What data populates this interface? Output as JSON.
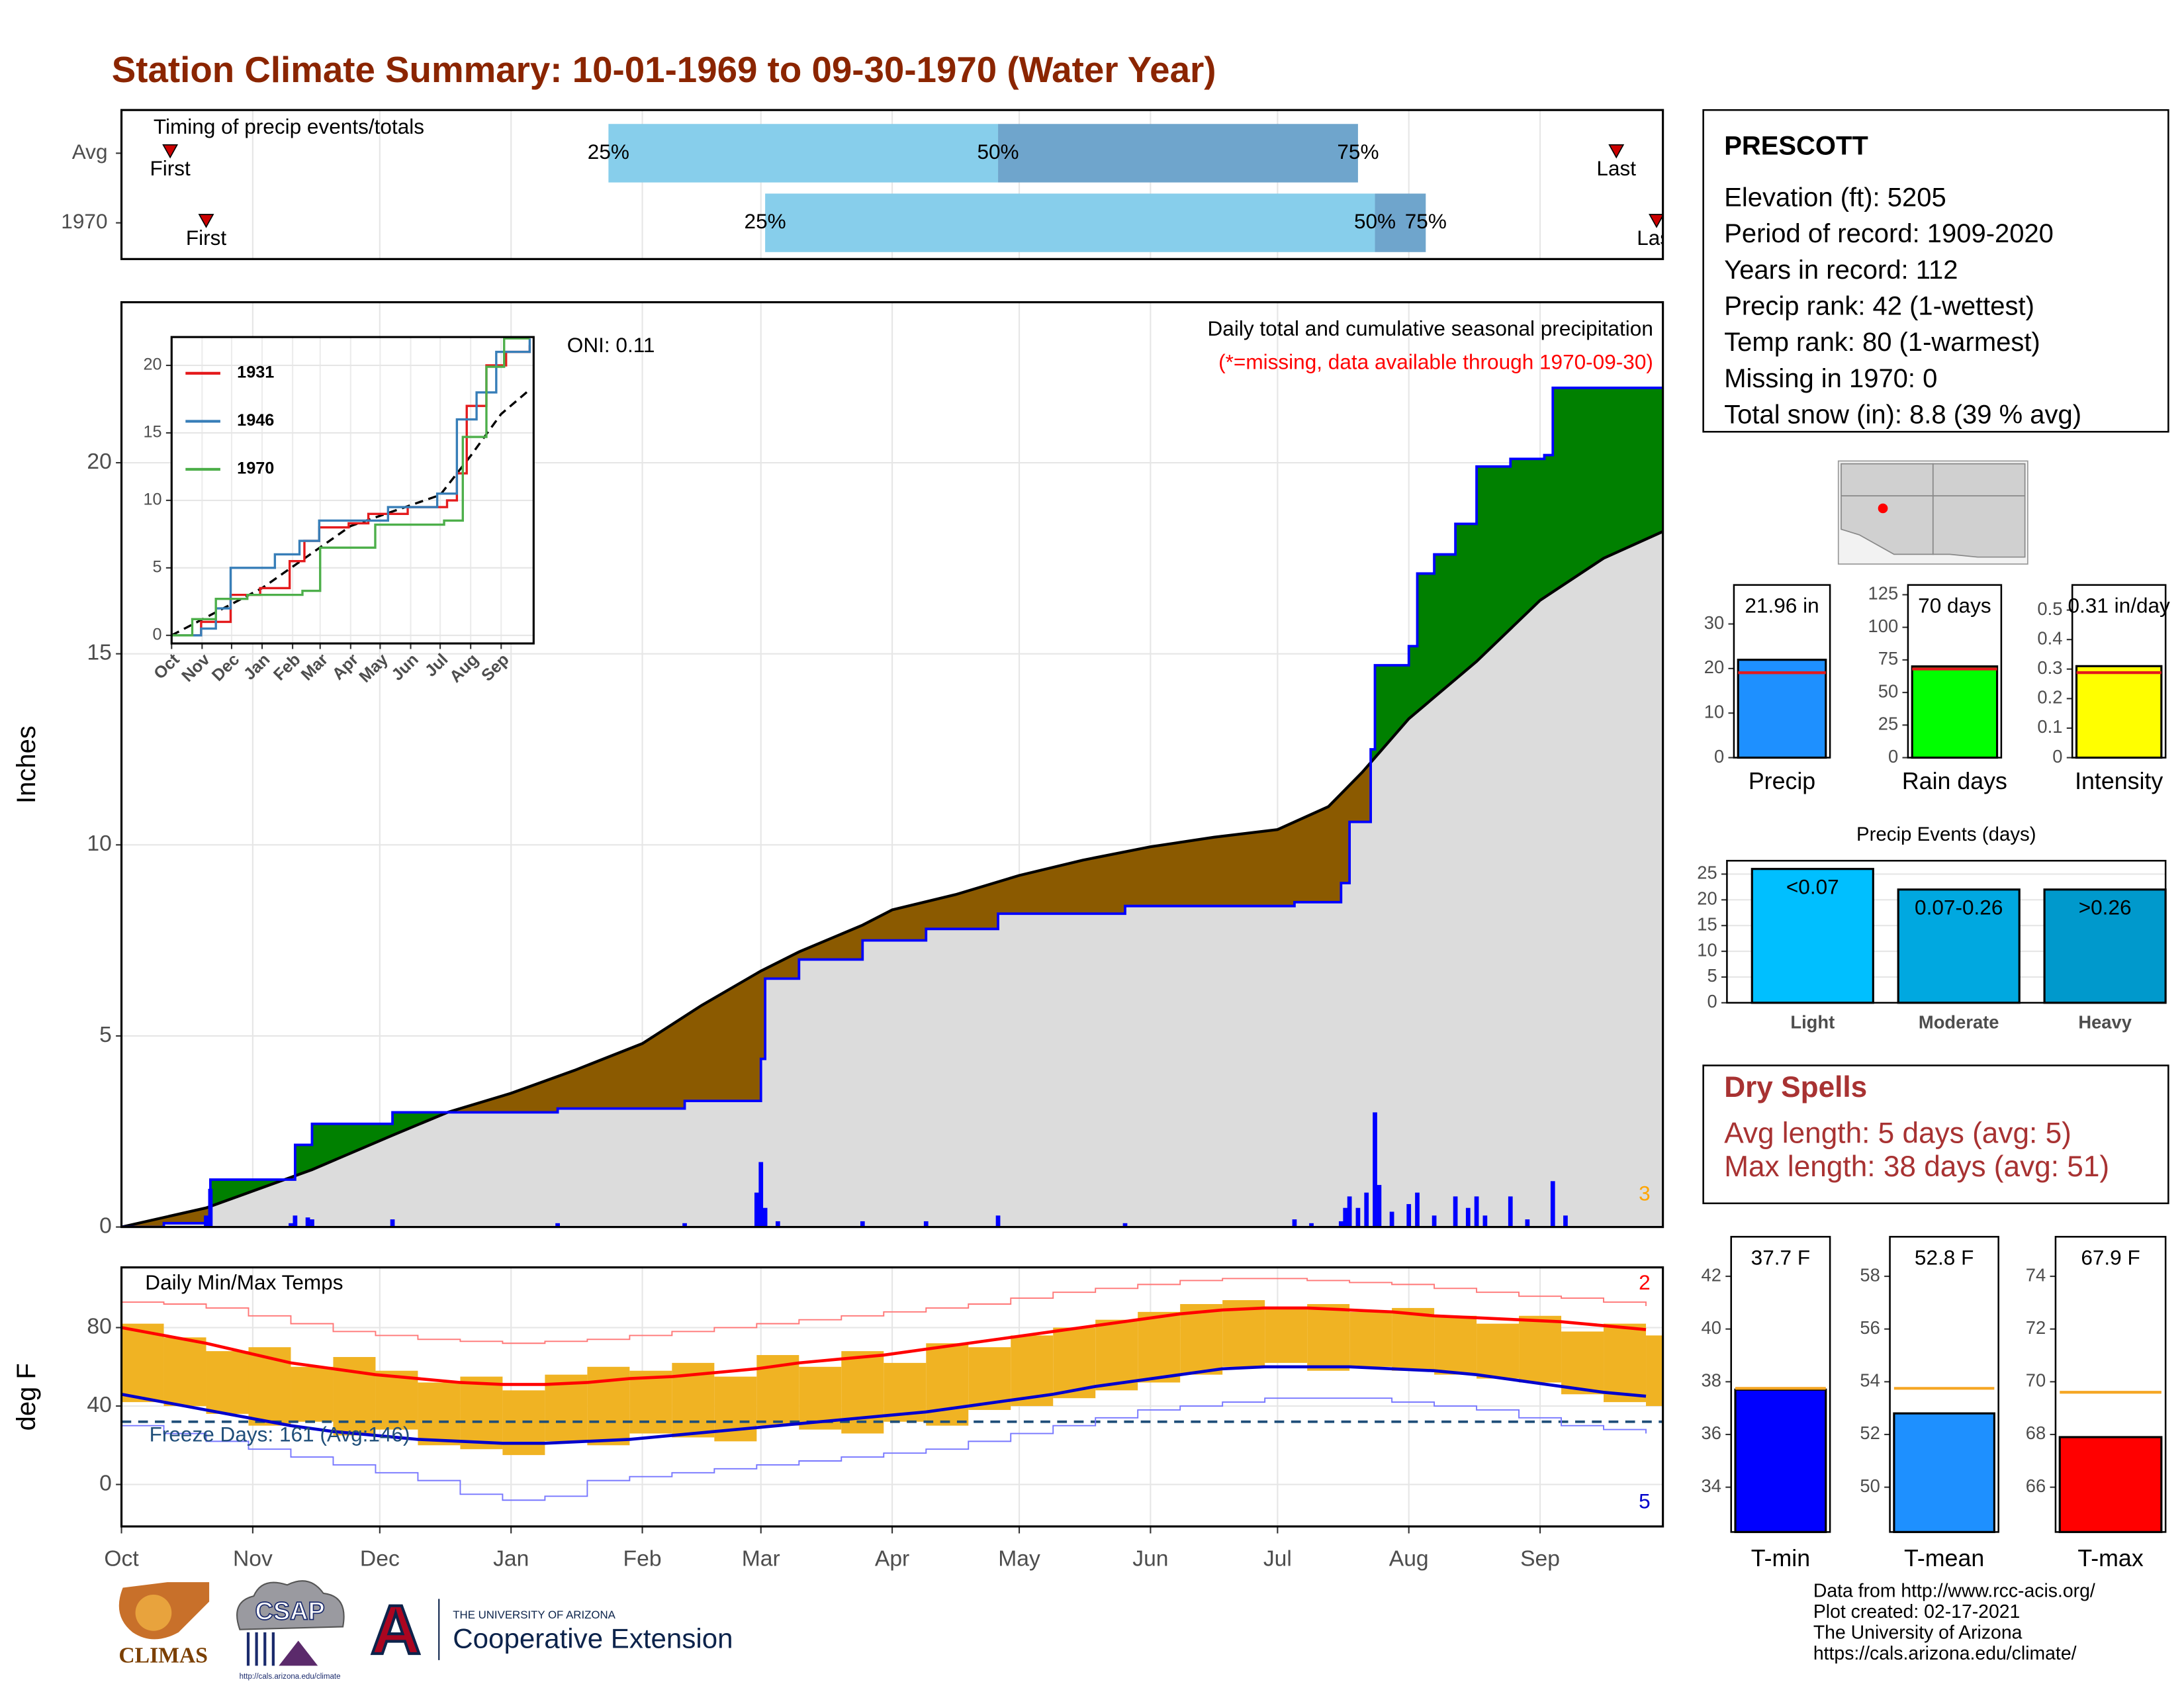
{
  "title": "Station Climate Summary: 10-01-1969 to 09-30-1970 (Water Year)",
  "station": {
    "name": "PRESCOTT",
    "lines": [
      "Elevation (ft): 5205",
      "Period of record: 1909-2020",
      "Years in record: 112",
      "Precip rank: 42 (1-wettest)",
      "Temp rank: 80 (1-warmest)",
      "Missing in 1970: 0",
      "Total snow (in): 8.8 (39 % avg)"
    ]
  },
  "dry_spells": {
    "title": "Dry Spells",
    "lines": [
      "Avg length: 5 days (avg: 5)",
      "Max length: 38 days (avg: 51)"
    ]
  },
  "footer": {
    "logos": [
      "CLIMAS",
      "CSAP",
      "http://cals.arizona.edu/climate",
      "THE UNIVERSITY OF ARIZONA",
      "Cooperative Extension"
    ],
    "credits": [
      "Data from http://www.rcc-acis.org/",
      "Plot created: 02-17-2021",
      "The University of Arizona",
      "https://cals.arizona.edu/climate/"
    ]
  },
  "chart_data": [
    {
      "type": "timing",
      "title": "Timing of precip events/totals",
      "categories": [
        "Avg",
        "1970"
      ],
      "quartiles": [
        [
          115,
          207,
          292
        ],
        [
          152,
          296,
          308
        ]
      ],
      "quartile_labels": [
        "25%",
        "50%",
        "75%"
      ],
      "first": [
        11.5,
        20
      ],
      "last": [
        353,
        362.5
      ],
      "first_label": "First",
      "last_label": "Last",
      "colors": [
        "#87ceeb",
        "#6fa5cc"
      ],
      "marker_color": "#cc0000",
      "xlim": [
        0,
        364
      ]
    },
    {
      "type": "cumulative",
      "title": "Daily total and cumulative seasonal precipitation",
      "subtitle": "(*=missing, data available through 1970-09-30)",
      "annotation": "ONI: 0.11",
      "corner_note": "3",
      "ylabel": "Inches",
      "xlim": [
        0,
        364
      ],
      "ylim": [
        0,
        24.2
      ],
      "yticks": [
        0,
        5,
        10,
        15,
        20
      ],
      "fill_above": "#008000",
      "fill_below": "#8b5a00",
      "fill_base": "#dcdcdc",
      "series": [
        {
          "color": "#0000ff",
          "x": [
            0,
            10,
            20,
            21,
            41,
            45,
            64,
            77,
            103,
            133,
            151,
            152,
            160,
            175,
            190,
            207,
            237,
            277,
            288,
            290,
            295,
            296,
            304,
            306,
            310,
            315,
            320,
            328,
            336,
            338,
            364
          ],
          "values": [
            0,
            0.1,
            0.2,
            1.24,
            2.15,
            2.7,
            3.0,
            3.0,
            3.1,
            3.3,
            4.4,
            6.5,
            7.0,
            7.5,
            7.8,
            8.2,
            8.4,
            8.5,
            9.0,
            10.6,
            12.5,
            14.7,
            15.2,
            17.1,
            17.6,
            18.4,
            19.9,
            20.1,
            20.2,
            21.96,
            21.96
          ]
        },
        {
          "color": "#000000",
          "x": [
            0,
            20,
            30,
            45,
            64,
            77,
            92,
            107,
            123,
            137,
            151,
            160,
            175,
            182,
            197,
            212,
            227,
            243,
            258,
            273,
            285,
            293,
            304,
            320,
            335,
            350,
            364
          ],
          "values": [
            0,
            0.5,
            0.9,
            1.5,
            2.4,
            3.0,
            3.5,
            4.1,
            4.8,
            5.8,
            6.7,
            7.2,
            7.9,
            8.3,
            8.7,
            9.2,
            9.6,
            9.95,
            10.2,
            10.4,
            11.0,
            11.9,
            13.3,
            14.8,
            16.4,
            17.5,
            18.2
          ]
        }
      ],
      "bars": {
        "color": "#0000ff",
        "x": [
          20,
          21,
          40,
          41,
          44,
          45,
          64,
          103,
          133,
          150,
          151,
          152,
          155,
          175,
          190,
          207,
          237,
          277,
          281,
          288,
          289,
          290,
          292,
          294,
          296,
          297,
          300,
          304,
          306,
          310,
          315,
          318,
          320,
          322,
          328,
          332,
          338,
          341
        ],
        "values": [
          0.3,
          1.0,
          0.1,
          0.3,
          0.25,
          0.2,
          0.2,
          0.1,
          0.1,
          0.9,
          1.7,
          0.5,
          0.15,
          0.15,
          0.15,
          0.3,
          0.1,
          0.2,
          0.1,
          0.15,
          0.5,
          0.8,
          0.5,
          0.9,
          3.0,
          1.1,
          0.4,
          0.6,
          0.9,
          0.3,
          0.8,
          0.5,
          0.8,
          0.3,
          0.8,
          0.2,
          1.2,
          0.3
        ]
      }
    },
    {
      "type": "line",
      "xlim": [
        0,
        368
      ],
      "ylim": [
        -0.6,
        22.1
      ],
      "yticks": [
        0,
        5,
        10,
        15,
        20
      ],
      "xticks": [
        {
          "value": 0,
          "label": "Oct"
        },
        {
          "value": 31,
          "label": "Nov"
        },
        {
          "value": 61,
          "label": "Dec"
        },
        {
          "value": 92,
          "label": "Jan"
        },
        {
          "value": 123,
          "label": "Feb"
        },
        {
          "value": 151,
          "label": "Mar"
        },
        {
          "value": 182,
          "label": "Apr"
        },
        {
          "value": 212,
          "label": "May"
        },
        {
          "value": 243,
          "label": "Jun"
        },
        {
          "value": 273,
          "label": "Jul"
        },
        {
          "value": 304,
          "label": "Aug"
        },
        {
          "value": 335,
          "label": "Sep"
        }
      ],
      "series": [
        {
          "name": "1931",
          "color": "#e41a1c",
          "x": [
            0,
            30,
            60,
            90,
            120,
            135,
            150,
            180,
            200,
            240,
            280,
            290,
            300,
            320,
            340,
            364
          ],
          "values": [
            0,
            1,
            3,
            3.5,
            5.5,
            7,
            8,
            8.3,
            9,
            9.5,
            10,
            12,
            17,
            20,
            21,
            21.5
          ]
        },
        {
          "name": "1946",
          "color": "#377eb8",
          "x": [
            0,
            30,
            45,
            60,
            90,
            105,
            130,
            150,
            180,
            220,
            270,
            290,
            310,
            330,
            364
          ],
          "values": [
            0,
            0.5,
            2,
            5,
            5,
            6,
            7,
            8.5,
            8.5,
            9.5,
            10.5,
            16,
            18,
            21,
            22
          ]
        },
        {
          "name": "1970",
          "color": "#4daf4a",
          "x": [
            0,
            21,
            45,
            77,
            133,
            151,
            207,
            277,
            296,
            320,
            338,
            364
          ],
          "values": [
            0,
            1.2,
            2.7,
            3,
            3.3,
            6.5,
            8.2,
            8.5,
            14.7,
            19.9,
            22,
            22
          ]
        }
      ],
      "average": {
        "color": "#000000",
        "x": [
          0,
          92,
          182,
          273,
          304,
          335,
          364
        ],
        "values": [
          0,
          3.5,
          8.1,
          10.4,
          13.3,
          16.4,
          18.2
        ]
      }
    },
    {
      "type": "temperature",
      "title": "Daily Min/Max Temps",
      "ylabel": "deg F",
      "corner_high": "2",
      "corner_low": "5",
      "freeze_label": "Freeze Days: 161 (Avg:146)",
      "freeze_line": 32,
      "freeze_color": "#1f4e79",
      "xlim": [
        0,
        364
      ],
      "ylim": [
        -21.4,
        110.7
      ],
      "yticks": [
        0,
        40,
        80
      ],
      "xticks": [
        {
          "value": 0,
          "label": "Oct"
        },
        {
          "value": 31,
          "label": "Nov"
        },
        {
          "value": 61,
          "label": "Dec"
        },
        {
          "value": 92,
          "label": "Jan"
        },
        {
          "value": 123,
          "label": "Feb"
        },
        {
          "value": 151,
          "label": "Mar"
        },
        {
          "value": 182,
          "label": "Apr"
        },
        {
          "value": 212,
          "label": "May"
        },
        {
          "value": 243,
          "label": "Jun"
        },
        {
          "value": 273,
          "label": "Jul"
        },
        {
          "value": 304,
          "label": "Aug"
        },
        {
          "value": 335,
          "label": "Sep"
        }
      ],
      "x": [
        0,
        10,
        20,
        30,
        40,
        50,
        60,
        70,
        80,
        90,
        100,
        110,
        120,
        130,
        140,
        150,
        160,
        170,
        180,
        190,
        200,
        210,
        220,
        230,
        240,
        250,
        260,
        270,
        280,
        290,
        300,
        310,
        320,
        330,
        340,
        350,
        360
      ],
      "daily": {
        "color": "#f0b323",
        "tmax": [
          82,
          75,
          68,
          70,
          60,
          65,
          58,
          52,
          55,
          48,
          56,
          60,
          58,
          62,
          55,
          66,
          60,
          68,
          62,
          72,
          70,
          76,
          80,
          84,
          88,
          92,
          94,
          90,
          92,
          88,
          90,
          86,
          82,
          86,
          78,
          82,
          76
        ],
        "tmin": [
          42,
          40,
          36,
          30,
          32,
          25,
          28,
          20,
          18,
          15,
          22,
          20,
          26,
          24,
          22,
          30,
          28,
          26,
          32,
          30,
          38,
          40,
          44,
          48,
          52,
          56,
          60,
          62,
          58,
          60,
          58,
          56,
          54,
          52,
          46,
          42,
          40
        ]
      },
      "series": [
        {
          "color": "#ff0000",
          "values": [
            80,
            76,
            72,
            67,
            62,
            59,
            56,
            54,
            52,
            51,
            51,
            52,
            54,
            55,
            57,
            59,
            62,
            64,
            66,
            69,
            72,
            75,
            78,
            81,
            84,
            87,
            89,
            90,
            90,
            89,
            88,
            86,
            85,
            84,
            83,
            81,
            79
          ]
        },
        {
          "color": "#0000cc",
          "values": [
            46,
            42,
            38,
            34,
            30,
            27,
            25,
            23,
            22,
            21,
            21,
            22,
            23,
            25,
            27,
            29,
            31,
            33,
            35,
            37,
            40,
            43,
            46,
            50,
            53,
            56,
            59,
            60,
            60,
            60,
            59,
            58,
            56,
            53,
            50,
            47,
            45
          ]
        },
        {
          "color": "#ff7777",
          "values": [
            93,
            92,
            90,
            86,
            82,
            78,
            76,
            74,
            73,
            72,
            73,
            74,
            76,
            78,
            80,
            82,
            84,
            86,
            88,
            90,
            92,
            95,
            98,
            100,
            102,
            104,
            105,
            105,
            104,
            103,
            102,
            100,
            98,
            96,
            95,
            93,
            91
          ]
        },
        {
          "color": "#7777ff",
          "values": [
            30,
            26,
            22,
            18,
            14,
            10,
            6,
            2,
            -5,
            -8,
            -6,
            2,
            4,
            6,
            8,
            10,
            12,
            14,
            16,
            18,
            22,
            26,
            30,
            34,
            38,
            40,
            42,
            44,
            44,
            44,
            42,
            40,
            38,
            34,
            30,
            28,
            26
          ]
        }
      ]
    },
    {
      "type": "bar",
      "categories": [
        "Precip"
      ],
      "values": [
        21.96
      ],
      "value_labels": [
        "21.96 in"
      ],
      "color": "#1e90ff",
      "average": 19.06,
      "average_color": "#e31a1c",
      "ylim": [
        0,
        38.75
      ],
      "yticks": [
        0,
        10,
        20,
        30
      ]
    },
    {
      "type": "bar",
      "categories": [
        "Rain days"
      ],
      "values": [
        70
      ],
      "value_labels": [
        "70 days"
      ],
      "color": "#00ff00",
      "average": 68,
      "average_color": "#e31a1c",
      "ylim": [
        0,
        132.5
      ],
      "yticks": [
        0,
        25,
        50,
        75,
        100,
        125
      ]
    },
    {
      "type": "bar",
      "categories": [
        "Intensity"
      ],
      "values": [
        0.31
      ],
      "value_labels": [
        "0.31 in/day"
      ],
      "color": "#ffff00",
      "average": 0.288,
      "average_color": "#e31a1c",
      "ylim": [
        0,
        0.585
      ],
      "yticks": [
        0.0,
        0.1,
        0.2,
        0.3,
        0.4,
        0.5
      ]
    },
    {
      "type": "bar",
      "title": "Precip Events (days)",
      "categories": [
        "Light",
        "Moderate",
        "Heavy"
      ],
      "values": [
        26,
        22,
        22
      ],
      "bar_labels": [
        "<0.07",
        "0.07-0.26",
        ">0.26"
      ],
      "colors": [
        "#00bfff",
        "#00a8e0",
        "#0099cc"
      ],
      "ylim": [
        0,
        27.6
      ],
      "yticks": [
        0,
        5,
        10,
        15,
        20,
        25
      ],
      "grid": true
    },
    {
      "type": "bar",
      "categories": [
        "T-min"
      ],
      "values": [
        37.7
      ],
      "value_labels": [
        "37.7 F"
      ],
      "color": "#0000ff",
      "average": 37.75,
      "average_color": "#f5a623",
      "ylim": [
        32.3,
        43.5
      ],
      "yticks": [
        34,
        36,
        38,
        40,
        42
      ]
    },
    {
      "type": "bar",
      "categories": [
        "T-mean"
      ],
      "values": [
        52.8
      ],
      "value_labels": [
        "52.8 F"
      ],
      "color": "#1e90ff",
      "average": 53.75,
      "average_color": "#f5a623",
      "ylim": [
        48.3,
        59.5
      ],
      "yticks": [
        50,
        52,
        54,
        56,
        58
      ]
    },
    {
      "type": "bar",
      "categories": [
        "T-max"
      ],
      "values": [
        67.9
      ],
      "value_labels": [
        "67.9 F"
      ],
      "color": "#ff0000",
      "average": 69.6,
      "average_color": "#f5a623",
      "ylim": [
        64.3,
        75.5
      ],
      "yticks": [
        66,
        68,
        70,
        72,
        74
      ]
    }
  ]
}
